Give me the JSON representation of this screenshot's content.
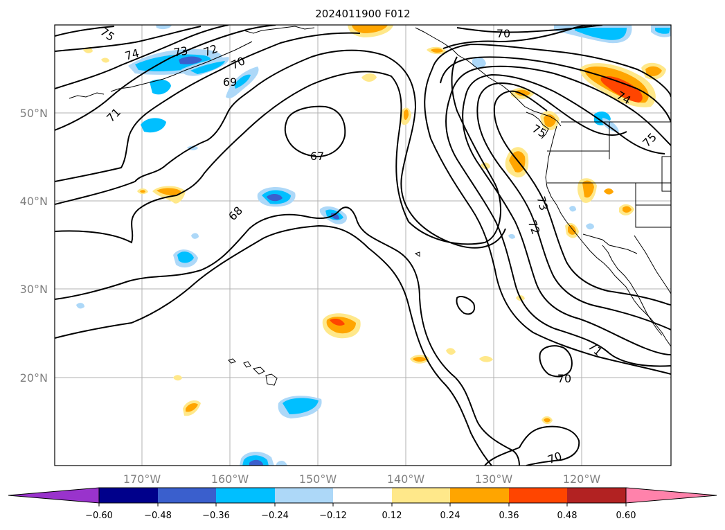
{
  "title": "2024011900 F012",
  "latitude_labels": [
    "50°N",
    "40°N",
    "30°N",
    "20°N"
  ],
  "longitude_labels": [
    "170°W",
    "160°W",
    "150°W",
    "140°W",
    "130°W",
    "120°W"
  ],
  "colorbar": {
    "tick_labels": [
      "−0.60",
      "−0.48",
      "−0.36",
      "−0.24",
      "−0.12",
      "0.12",
      "0.24",
      "0.36",
      "0.48",
      "0.60"
    ],
    "colors": [
      "#9933cc",
      "#00008b",
      "#3a5fcd",
      "#00bfff",
      "#add8f8",
      "#ffffff",
      "#ffe88a",
      "#ffa500",
      "#ff4500",
      "#b22222",
      "#ff82ab"
    ]
  },
  "contour_labels": [
    "75",
    "74",
    "73",
    "72",
    "70",
    "69",
    "71",
    "67",
    "68",
    "70",
    "73",
    "72",
    "74",
    "75",
    "75",
    "71",
    "70",
    "70"
  ]
}
